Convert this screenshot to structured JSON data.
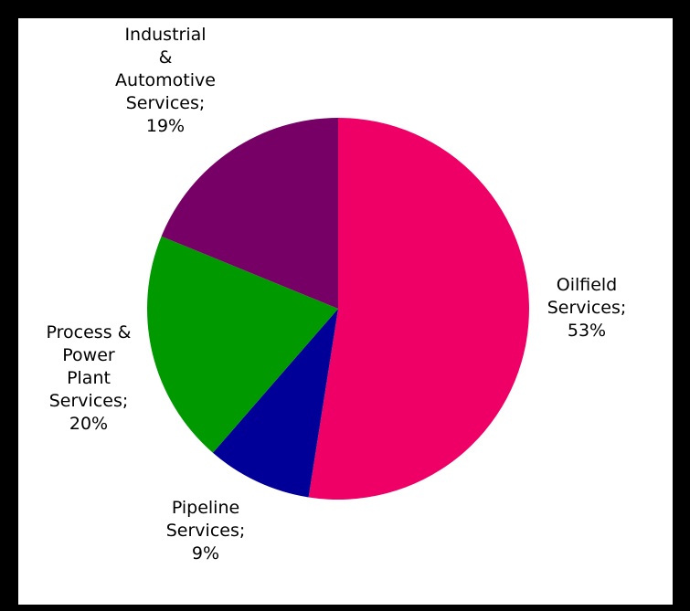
{
  "chart_data": {
    "type": "pie",
    "title": "",
    "slices": [
      {
        "label": "Oilfield Services",
        "value": 53,
        "display": [
          "Oilfield",
          "Services;",
          "53%"
        ],
        "color": "#EE0066"
      },
      {
        "label": "Pipeline Services",
        "value": 9,
        "display": [
          "Pipeline",
          "Services;",
          "9%"
        ],
        "color": "#000099"
      },
      {
        "label": "Process & Power Plant Services",
        "value": 20,
        "display": [
          "Process &",
          "Power",
          "Plant",
          "Services;",
          "20%"
        ],
        "color": "#009900"
      },
      {
        "label": "Industrial & Automotive Services",
        "value": 19,
        "display": [
          "Industrial",
          "&",
          "Automotive",
          "Services;",
          "19%"
        ],
        "color": "#770066"
      }
    ],
    "legend": "none",
    "data_labels": "outside"
  }
}
